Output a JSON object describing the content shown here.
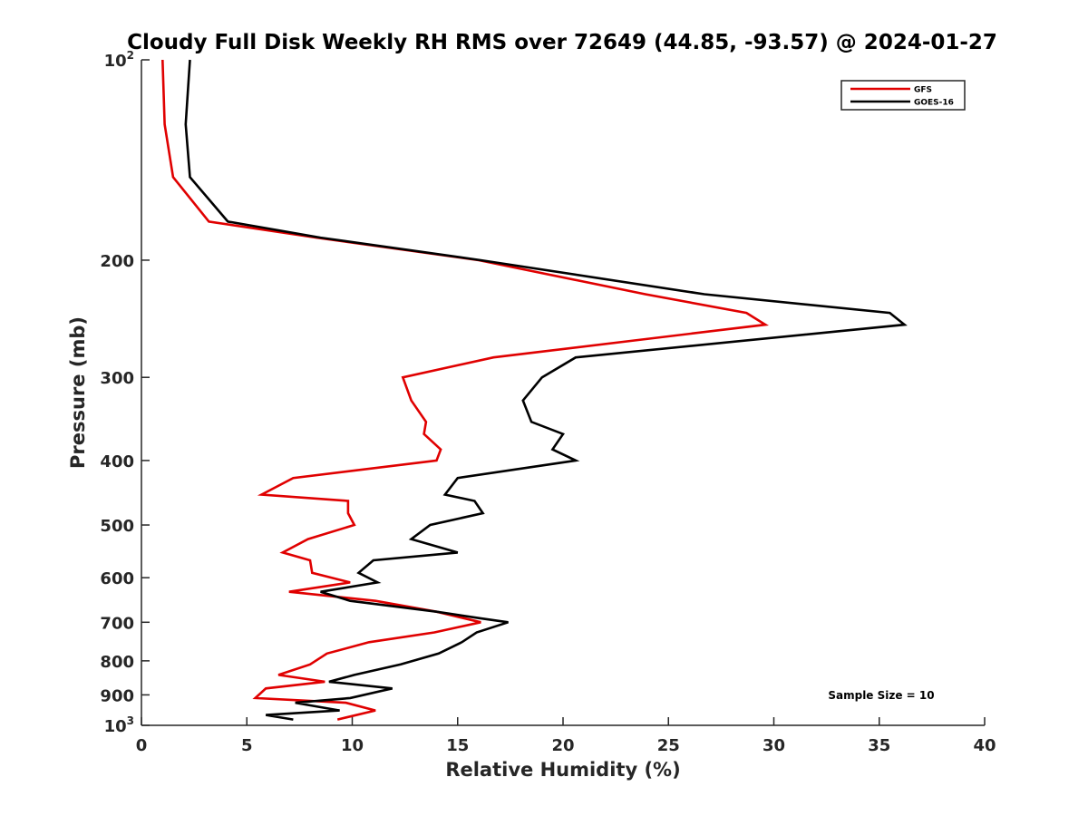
{
  "chart_data": {
    "type": "line",
    "title": "Cloudy Full Disk Weekly RH RMS over 72649 (44.85, -93.57) @ 2024-01-27",
    "xlabel": "Relative Humidity (%)",
    "ylabel": "Pressure (mb)",
    "xlim": [
      0,
      40
    ],
    "ylim": [
      100,
      1000
    ],
    "y_scale": "log",
    "y_reversed": true,
    "x_ticks": [
      0,
      5,
      10,
      15,
      20,
      25,
      30,
      35,
      40
    ],
    "x_tick_labels": [
      "0",
      "5",
      "10",
      "15",
      "20",
      "25",
      "30",
      "35",
      "40"
    ],
    "y_ticks": [
      100,
      200,
      300,
      400,
      500,
      600,
      700,
      800,
      900,
      1000
    ],
    "y_tick_labels": [
      {
        "base": "10",
        "sup": "2"
      },
      {
        "base": "200",
        "sup": ""
      },
      {
        "base": "300",
        "sup": ""
      },
      {
        "base": "400",
        "sup": ""
      },
      {
        "base": "500",
        "sup": ""
      },
      {
        "base": "600",
        "sup": ""
      },
      {
        "base": "700",
        "sup": ""
      },
      {
        "base": "800",
        "sup": ""
      },
      {
        "base": "900",
        "sup": ""
      },
      {
        "base": "10",
        "sup": "3"
      }
    ],
    "grid": false,
    "legend_position": "top-right",
    "annotation": "Sample Size = 10",
    "series": [
      {
        "name": "GFS",
        "color": "#e00000",
        "points": [
          [
            1.0,
            100
          ],
          [
            1.1,
            125
          ],
          [
            1.5,
            150
          ],
          [
            3.2,
            175
          ],
          [
            8.3,
            185
          ],
          [
            16.0,
            200
          ],
          [
            23.9,
            225
          ],
          [
            28.7,
            240
          ],
          [
            29.6,
            250
          ],
          [
            16.7,
            280
          ],
          [
            12.4,
            300
          ],
          [
            12.8,
            325
          ],
          [
            13.5,
            350
          ],
          [
            13.4,
            365
          ],
          [
            14.2,
            385
          ],
          [
            14.0,
            400
          ],
          [
            7.2,
            425
          ],
          [
            5.7,
            450
          ],
          [
            9.8,
            460
          ],
          [
            9.8,
            480
          ],
          [
            10.1,
            500
          ],
          [
            7.9,
            525
          ],
          [
            6.7,
            550
          ],
          [
            8.0,
            565
          ],
          [
            8.1,
            590
          ],
          [
            9.9,
            610
          ],
          [
            7.0,
            630
          ],
          [
            11.1,
            650
          ],
          [
            14.0,
            675
          ],
          [
            16.1,
            700
          ],
          [
            13.9,
            725
          ],
          [
            10.8,
            750
          ],
          [
            8.8,
            780
          ],
          [
            8.0,
            810
          ],
          [
            6.5,
            840
          ],
          [
            8.7,
            860
          ],
          [
            5.9,
            880
          ],
          [
            5.4,
            910
          ],
          [
            9.7,
            925
          ],
          [
            11.1,
            950
          ],
          [
            9.3,
            980
          ]
        ]
      },
      {
        "name": "GOES-16",
        "color": "#000000",
        "points": [
          [
            2.3,
            100
          ],
          [
            2.1,
            125
          ],
          [
            2.3,
            150
          ],
          [
            4.1,
            175
          ],
          [
            8.5,
            185
          ],
          [
            16.1,
            200
          ],
          [
            26.7,
            225
          ],
          [
            35.5,
            240
          ],
          [
            36.2,
            250
          ],
          [
            20.6,
            280
          ],
          [
            19.0,
            300
          ],
          [
            18.1,
            325
          ],
          [
            18.5,
            350
          ],
          [
            20.0,
            365
          ],
          [
            19.5,
            385
          ],
          [
            20.6,
            400
          ],
          [
            15.0,
            425
          ],
          [
            14.4,
            450
          ],
          [
            15.8,
            460
          ],
          [
            16.2,
            480
          ],
          [
            13.7,
            500
          ],
          [
            12.8,
            525
          ],
          [
            15.0,
            550
          ],
          [
            11.0,
            565
          ],
          [
            10.3,
            590
          ],
          [
            11.2,
            610
          ],
          [
            8.5,
            630
          ],
          [
            9.9,
            650
          ],
          [
            14.0,
            675
          ],
          [
            16.0,
            690
          ],
          [
            17.4,
            700
          ],
          [
            15.9,
            725
          ],
          [
            15.2,
            750
          ],
          [
            14.1,
            780
          ],
          [
            12.3,
            810
          ],
          [
            10.1,
            840
          ],
          [
            8.9,
            860
          ],
          [
            11.9,
            880
          ],
          [
            9.9,
            910
          ],
          [
            7.3,
            925
          ],
          [
            9.4,
            950
          ],
          [
            5.9,
            965
          ],
          [
            7.2,
            980
          ]
        ]
      }
    ]
  }
}
